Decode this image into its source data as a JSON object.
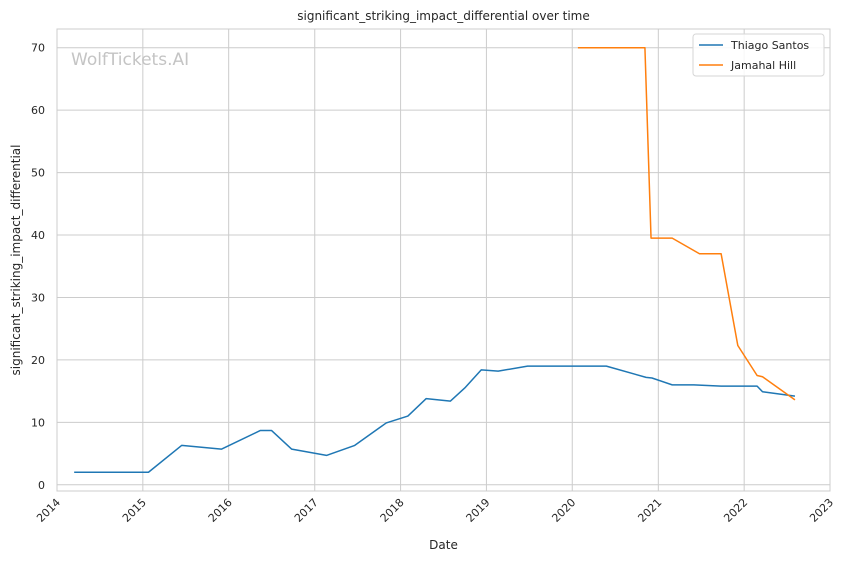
{
  "chart_data": {
    "type": "line",
    "title": "significant_striking_impact_differential over time",
    "xlabel": "Date",
    "ylabel": "significant_striking_impact_differential",
    "watermark": "WolfTickets.AI",
    "xlim": [
      "2014-01-01",
      "2023-01-01"
    ],
    "ylim": [
      -1,
      73
    ],
    "x_ticks": [
      "2014",
      "2015",
      "2016",
      "2017",
      "2018",
      "2019",
      "2020",
      "2021",
      "2022",
      "2023"
    ],
    "y_ticks": [
      0,
      10,
      20,
      30,
      40,
      50,
      60,
      70
    ],
    "grid": true,
    "legend_position": "top-right",
    "series": [
      {
        "name": "Thiago Santos",
        "color": "#1f77b4",
        "points": [
          [
            "2014-03-15",
            2.0
          ],
          [
            "2015-01-25",
            2.0
          ],
          [
            "2015-06-15",
            6.3
          ],
          [
            "2015-12-01",
            5.7
          ],
          [
            "2016-05-15",
            8.7
          ],
          [
            "2016-07-01",
            8.7
          ],
          [
            "2016-09-25",
            5.7
          ],
          [
            "2017-02-20",
            4.7
          ],
          [
            "2017-06-20",
            6.3
          ],
          [
            "2017-11-01",
            9.9
          ],
          [
            "2018-02-01",
            11.0
          ],
          [
            "2018-04-20",
            13.8
          ],
          [
            "2018-08-01",
            13.4
          ],
          [
            "2018-10-01",
            15.5
          ],
          [
            "2018-12-10",
            18.4
          ],
          [
            "2019-02-20",
            18.2
          ],
          [
            "2019-06-25",
            19.0
          ],
          [
            "2020-05-25",
            19.0
          ],
          [
            "2020-11-10",
            17.2
          ],
          [
            "2020-12-05",
            17.1
          ],
          [
            "2021-03-01",
            16.0
          ],
          [
            "2021-06-01",
            16.0
          ],
          [
            "2021-09-25",
            15.8
          ],
          [
            "2022-02-25",
            15.8
          ],
          [
            "2022-03-20",
            14.9
          ],
          [
            "2022-08-05",
            14.2
          ]
        ]
      },
      {
        "name": "Jamahal Hill",
        "color": "#ff7f0e",
        "points": [
          [
            "2020-01-25",
            70.0
          ],
          [
            "2020-11-05",
            70.0
          ],
          [
            "2020-12-01",
            39.5
          ],
          [
            "2021-03-01",
            39.5
          ],
          [
            "2021-06-25",
            37.0
          ],
          [
            "2021-09-25",
            37.0
          ],
          [
            "2021-12-05",
            22.3
          ],
          [
            "2022-02-25",
            17.5
          ],
          [
            "2022-03-20",
            17.3
          ],
          [
            "2022-08-05",
            13.6
          ]
        ]
      }
    ]
  }
}
